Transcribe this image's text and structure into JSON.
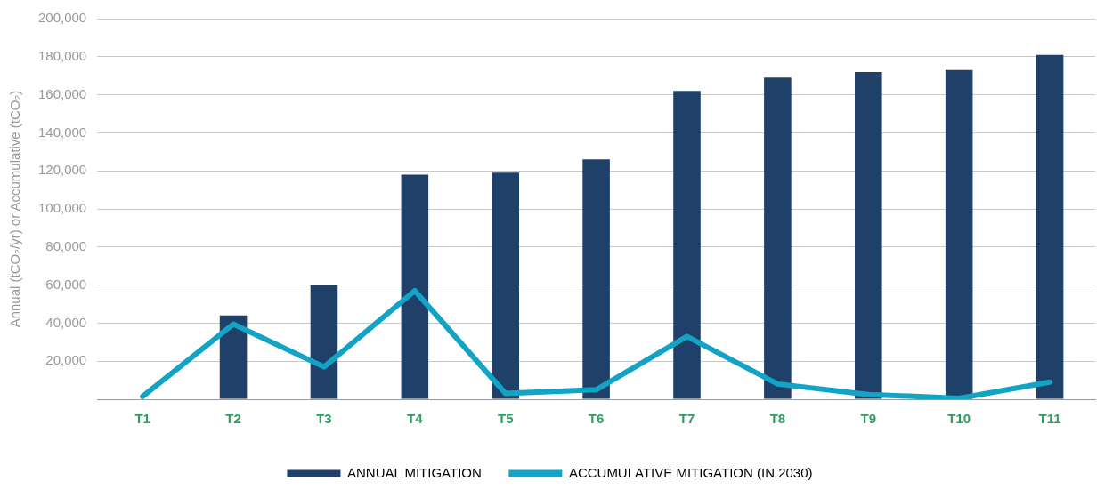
{
  "chart_data": {
    "type": "bar",
    "ylabel": "Annual (tCO₂/yr) or Accumulative (tCO₂)",
    "categories": [
      "T1",
      "T2",
      "T3",
      "T4",
      "T5",
      "T6",
      "T7",
      "T8",
      "T9",
      "T10",
      "T11"
    ],
    "series": [
      {
        "name": "ANNUAL MITIGATION",
        "color": "#1f4068",
        "values": [
          0,
          44000,
          60000,
          118000,
          119000,
          126000,
          162000,
          169000,
          172000,
          173000,
          181000
        ]
      },
      {
        "name": "ACCUMULATIVE MITIGATION (IN 2030)",
        "type": "line",
        "color": "#13a3c4",
        "values": [
          1500,
          39500,
          17000,
          57000,
          3000,
          5000,
          33000,
          8000,
          2500,
          500,
          9000
        ]
      }
    ],
    "ylim": [
      0,
      200000
    ],
    "yticks": [
      {
        "value": 0,
        "label": null
      },
      {
        "value": 20000,
        "label": "20,000"
      },
      {
        "value": 40000,
        "label": "40,000"
      },
      {
        "value": 60000,
        "label": "60,000"
      },
      {
        "value": 80000,
        "label": "80,000"
      },
      {
        "value": 100000,
        "label": "100,000"
      },
      {
        "value": 120000,
        "label": "120,000"
      },
      {
        "value": 140000,
        "label": "140,000"
      },
      {
        "value": 160000,
        "label": "160,000"
      },
      {
        "value": 180000,
        "label": "180,000"
      },
      {
        "value": 200000,
        "label": "200,000"
      }
    ],
    "grid": "y",
    "legend": "bottom",
    "marker": "none",
    "line_style": "solid"
  }
}
